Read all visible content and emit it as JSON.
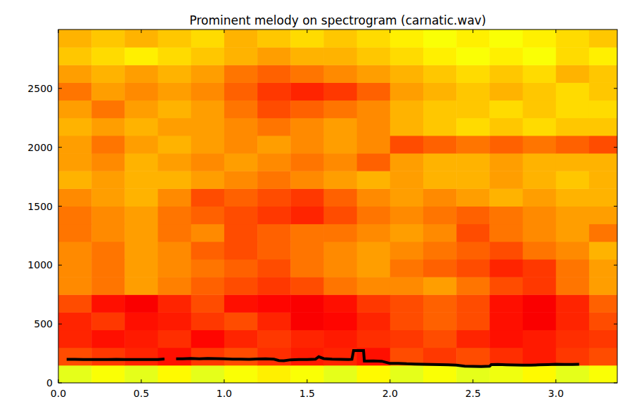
{
  "chart_data": {
    "type": "spectrogram",
    "title": "Prominent melody on spectrogram (carnatic.wav)",
    "xlim": [
      0,
      3.37
    ],
    "ylim": [
      0,
      3000
    ],
    "xticks": [
      {
        "value": 0,
        "label": "0.0"
      },
      0.5,
      {
        "value": 1,
        "label": "1.0"
      },
      1.5,
      {
        "value": 2,
        "label": "2.0"
      },
      2.5,
      {
        "value": 3,
        "label": "3.0"
      }
    ],
    "yticks": [
      0,
      500,
      1000,
      1500,
      2000,
      2500
    ],
    "zlim": [
      0,
      1
    ],
    "x_edges": [
      0,
      0.2,
      0.4,
      0.6,
      0.8,
      1.0,
      1.2,
      1.4,
      1.6,
      1.8,
      2.0,
      2.2,
      2.4,
      2.6,
      2.8,
      3.0,
      3.2,
      3.4
    ],
    "y_edges": [
      0,
      150,
      300,
      450,
      600,
      750,
      900,
      1050,
      1200,
      1350,
      1500,
      1650,
      1800,
      1950,
      2100,
      2250,
      2400,
      2550,
      2700,
      2850,
      3000
    ],
    "cells": [
      [
        0.6,
        0.62,
        0.6,
        0.63,
        0.6,
        0.62,
        0.64,
        0.62,
        0.6,
        0.63,
        0.6,
        0.62,
        0.6,
        0.61,
        0.63,
        0.6,
        0.62
      ],
      [
        0.8,
        0.82,
        0.84,
        0.86,
        0.82,
        0.8,
        0.83,
        0.85,
        0.84,
        0.86,
        0.8,
        0.82,
        0.8,
        0.83,
        0.85,
        0.82,
        0.8
      ],
      [
        0.84,
        0.86,
        0.85,
        0.83,
        0.87,
        0.84,
        0.82,
        0.84,
        0.85,
        0.83,
        0.82,
        0.8,
        0.84,
        0.86,
        0.85,
        0.83,
        0.82
      ],
      [
        0.84,
        0.82,
        0.86,
        0.85,
        0.82,
        0.8,
        0.84,
        0.88,
        0.87,
        0.84,
        0.8,
        0.78,
        0.8,
        0.86,
        0.88,
        0.84,
        0.8
      ],
      [
        0.8,
        0.86,
        0.88,
        0.84,
        0.8,
        0.86,
        0.87,
        0.88,
        0.86,
        0.82,
        0.8,
        0.78,
        0.8,
        0.86,
        0.88,
        0.84,
        0.78
      ],
      [
        0.74,
        0.76,
        0.72,
        0.75,
        0.78,
        0.8,
        0.82,
        0.8,
        0.76,
        0.74,
        0.74,
        0.72,
        0.76,
        0.8,
        0.82,
        0.76,
        0.72
      ],
      [
        0.74,
        0.76,
        0.72,
        0.74,
        0.76,
        0.78,
        0.8,
        0.76,
        0.74,
        0.72,
        0.76,
        0.78,
        0.8,
        0.84,
        0.82,
        0.76,
        0.72
      ],
      [
        0.74,
        0.76,
        0.72,
        0.74,
        0.78,
        0.8,
        0.78,
        0.76,
        0.74,
        0.72,
        0.74,
        0.76,
        0.78,
        0.8,
        0.76,
        0.74,
        0.7
      ],
      [
        0.76,
        0.74,
        0.72,
        0.76,
        0.74,
        0.8,
        0.78,
        0.76,
        0.76,
        0.74,
        0.72,
        0.74,
        0.8,
        0.76,
        0.74,
        0.72,
        0.76
      ],
      [
        0.76,
        0.74,
        0.72,
        0.76,
        0.78,
        0.8,
        0.82,
        0.84,
        0.8,
        0.76,
        0.74,
        0.76,
        0.78,
        0.76,
        0.74,
        0.72,
        0.72
      ],
      [
        0.74,
        0.72,
        0.7,
        0.74,
        0.8,
        0.78,
        0.8,
        0.82,
        0.78,
        0.74,
        0.72,
        0.74,
        0.72,
        0.7,
        0.72,
        0.7,
        0.7
      ],
      [
        0.7,
        0.72,
        0.7,
        0.7,
        0.72,
        0.74,
        0.76,
        0.74,
        0.72,
        0.7,
        0.72,
        0.7,
        0.7,
        0.72,
        0.7,
        0.68,
        0.7
      ],
      [
        0.72,
        0.74,
        0.7,
        0.72,
        0.74,
        0.72,
        0.74,
        0.76,
        0.74,
        0.78,
        0.72,
        0.7,
        0.7,
        0.72,
        0.7,
        0.7,
        0.7
      ],
      [
        0.72,
        0.76,
        0.72,
        0.7,
        0.72,
        0.74,
        0.72,
        0.74,
        0.72,
        0.74,
        0.8,
        0.78,
        0.76,
        0.78,
        0.76,
        0.78,
        0.8
      ],
      [
        0.7,
        0.72,
        0.7,
        0.72,
        0.72,
        0.74,
        0.76,
        0.74,
        0.72,
        0.74,
        0.7,
        0.68,
        0.66,
        0.68,
        0.66,
        0.68,
        0.68
      ],
      [
        0.72,
        0.76,
        0.72,
        0.7,
        0.72,
        0.76,
        0.8,
        0.78,
        0.76,
        0.74,
        0.7,
        0.68,
        0.68,
        0.66,
        0.68,
        0.66,
        0.66
      ],
      [
        0.76,
        0.72,
        0.74,
        0.72,
        0.74,
        0.78,
        0.82,
        0.84,
        0.82,
        0.78,
        0.72,
        0.7,
        0.68,
        0.7,
        0.68,
        0.66,
        0.68
      ],
      [
        0.72,
        0.7,
        0.72,
        0.7,
        0.72,
        0.76,
        0.78,
        0.76,
        0.74,
        0.72,
        0.7,
        0.68,
        0.66,
        0.68,
        0.66,
        0.7,
        0.68
      ],
      [
        0.68,
        0.66,
        0.64,
        0.66,
        0.68,
        0.7,
        0.72,
        0.7,
        0.7,
        0.68,
        0.66,
        0.64,
        0.62,
        0.64,
        0.62,
        0.66,
        0.64
      ],
      [
        0.7,
        0.68,
        0.7,
        0.68,
        0.66,
        0.7,
        0.68,
        0.66,
        0.68,
        0.66,
        0.64,
        0.62,
        0.64,
        0.62,
        0.64,
        0.66,
        0.68
      ]
    ],
    "series": [
      {
        "type": "line",
        "color": "#000000",
        "x": [
          0.05,
          0.1,
          0.15,
          0.2,
          0.25,
          0.3,
          0.35,
          0.4,
          0.45,
          0.5,
          0.55,
          0.6,
          0.64,
          0.67,
          0.71,
          0.75,
          0.8,
          0.85,
          0.9,
          0.95,
          1.0,
          1.05,
          1.1,
          1.15,
          1.2,
          1.25,
          1.3,
          1.33,
          1.36,
          1.4,
          1.45,
          1.5,
          1.55,
          1.57,
          1.6,
          1.65,
          1.7,
          1.75,
          1.77,
          1.78,
          1.84,
          1.845,
          1.9,
          1.95,
          2.0,
          2.05,
          2.1,
          2.15,
          2.2,
          2.25,
          2.3,
          2.35,
          2.4,
          2.45,
          2.5,
          2.55,
          2.6,
          2.61,
          2.65,
          2.7,
          2.75,
          2.8,
          2.85,
          2.9,
          2.95,
          3.0,
          3.05,
          3.1,
          3.14
        ],
        "values": [
          200,
          200,
          199,
          199,
          198,
          199,
          200,
          199,
          199,
          199,
          199,
          199,
          203,
          null,
          205,
          204,
          207,
          205,
          208,
          206,
          204,
          202,
          201,
          200,
          203,
          204,
          201,
          190,
          188,
          196,
          198,
          199,
          201,
          222,
          206,
          201,
          200,
          198,
          200,
          275,
          275,
          185,
          186,
          184,
          165,
          166,
          162,
          160,
          158,
          156,
          155,
          153,
          151,
          142,
          140,
          138,
          141,
          155,
          157,
          154,
          152,
          150,
          151,
          153,
          155,
          158,
          156,
          157,
          158
        ]
      }
    ]
  }
}
